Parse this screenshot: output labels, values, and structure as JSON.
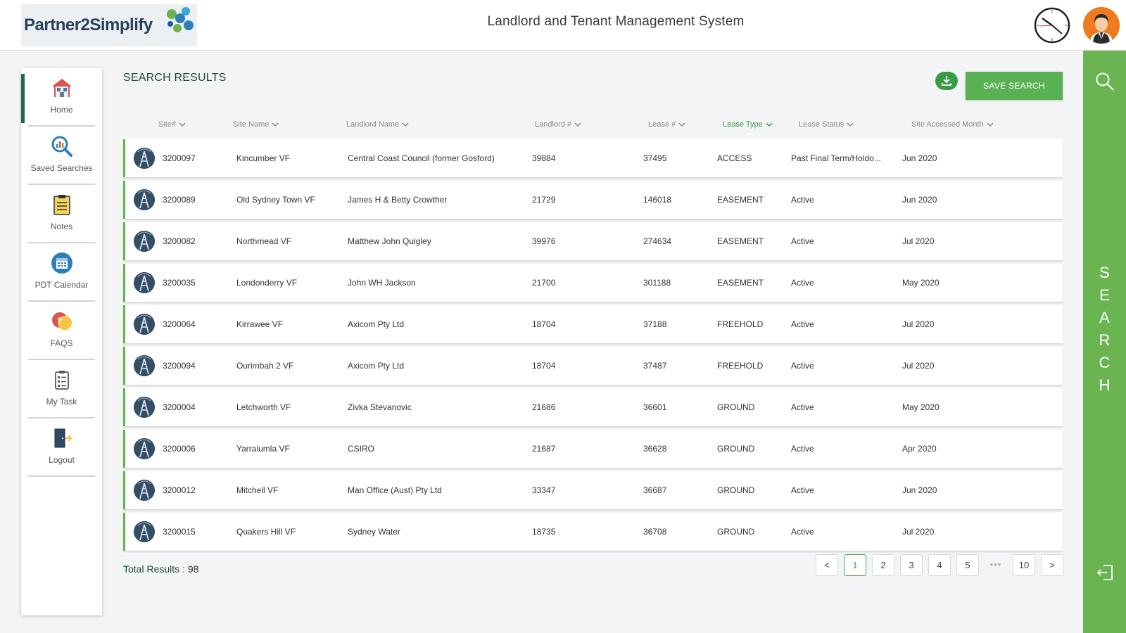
{
  "header": {
    "logo_text": "Partner2Simplify",
    "title": "Landlord and Tenant Management System"
  },
  "sidebar": {
    "items": [
      {
        "label": "Home",
        "icon": "home-icon"
      },
      {
        "label": "Saved Searches",
        "icon": "saved-search-icon"
      },
      {
        "label": "Notes",
        "icon": "notes-icon"
      },
      {
        "label": "PDT Calendar",
        "icon": "calendar-icon"
      },
      {
        "label": "FAQS",
        "icon": "faq-icon"
      },
      {
        "label": "My Task",
        "icon": "task-icon"
      },
      {
        "label": "Logout",
        "icon": "logout-icon"
      }
    ]
  },
  "main": {
    "section_title": "SEARCH RESULTS",
    "save_search_label": "SAVE SEARCH",
    "columns": [
      "Site#",
      "Site Name",
      "Landlord Name",
      "Landlord #",
      "Lease #",
      "Lease Type",
      "Lease Status",
      "Site Accessed Month"
    ],
    "active_column": "Lease Type",
    "rows": [
      [
        "3200097",
        "Kincumber VF",
        "Central Coast Council (former Gosford)",
        "39884",
        "37495",
        "ACCESS",
        "Past Final Term/Holdo...",
        "Jun 2020"
      ],
      [
        "3200089",
        "Old Sydney Town VF",
        "James H & Betty Crowther",
        "21729",
        "146018",
        "EASEMENT",
        "Active",
        "Jun 2020"
      ],
      [
        "3200082",
        "Northmead VF",
        "Matthew John Quigley",
        "39976",
        "274634",
        "EASEMENT",
        "Active",
        "Jul 2020"
      ],
      [
        "3200035",
        "Londonderry VF",
        "John WH Jackson",
        "21700",
        "301188",
        "EASEMENT",
        "Active",
        "May 2020"
      ],
      [
        "3200064",
        "Kirrawee VF",
        "Axicom Pty Ltd",
        "18704",
        "37188",
        "FREEHOLD",
        "Active",
        "Jul 2020"
      ],
      [
        "3200094",
        "Ourimbah 2 VF",
        "Axicom Pty Ltd",
        "18704",
        "37487",
        "FREEHOLD",
        "Active",
        "Jul 2020"
      ],
      [
        "3200004",
        "Letchworth VF",
        "Zivka Stevanovic",
        "21686",
        "36601",
        "GROUND",
        "Active",
        "May 2020"
      ],
      [
        "3200006",
        "Yarralumla VF",
        "CSIRO",
        "21687",
        "36628",
        "GROUND",
        "Active",
        "Apr 2020"
      ],
      [
        "3200012",
        "Mitchell VF",
        "Man Office (Aust) Pty Ltd",
        "33347",
        "36687",
        "GROUND",
        "Active",
        "Jun 2020"
      ],
      [
        "3200015",
        "Quakers Hill VF",
        "Sydney Water",
        "18735",
        "36708",
        "GROUND",
        "Active",
        "Jul 2020"
      ]
    ],
    "total_label": "Total Results : ",
    "total_value": "98"
  },
  "pagination": {
    "prev": "<",
    "pages": [
      "1",
      "2",
      "3",
      "4",
      "5"
    ],
    "ellipsis": "•••",
    "last": "10",
    "next": ">",
    "current": "1"
  },
  "rightbar": {
    "letters": [
      "S",
      "E",
      "A",
      "R",
      "C",
      "H"
    ]
  },
  "colors": {
    "accent_green": "#5ab154",
    "dark_green": "#1f4a34",
    "rightbar_green": "#6ab552"
  }
}
